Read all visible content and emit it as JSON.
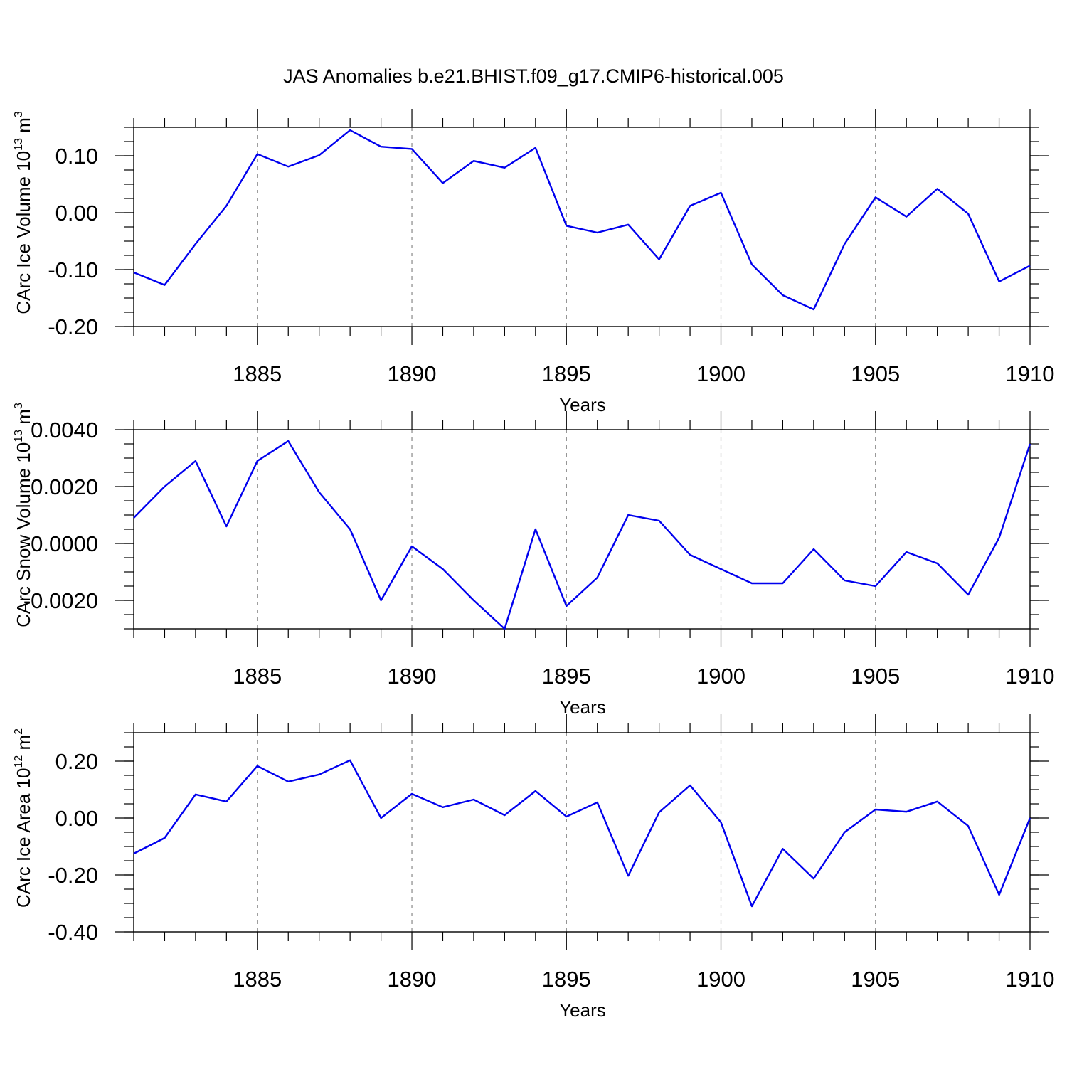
{
  "title": "JAS Anomalies b.e21.BHIST.f09_g17.CMIP6-historical.005",
  "colors": {
    "series": "#0000ee",
    "axis": "#000000",
    "grid": "#888888"
  },
  "chart_data": [
    {
      "type": "line",
      "ylabel": "CArc Ice Volume 10",
      "ylabel_exp": "13",
      "ylabel_unit": " m",
      "ylabel_unit_exp": "3",
      "xlabel": "Years",
      "xlim": [
        1881,
        1910
      ],
      "ylim": [
        -0.2,
        0.15
      ],
      "yticks": [
        -0.2,
        -0.1,
        0.0,
        0.1
      ],
      "ytick_labels": [
        "-0.20",
        "-0.10",
        "0.00",
        "0.10"
      ],
      "yminor": 0.025,
      "xticks": [
        1885,
        1890,
        1895,
        1900,
        1905,
        1910
      ],
      "xtick_labels": [
        "1885",
        "1890",
        "1895",
        "1900",
        "1905",
        "1910"
      ],
      "grid_x": [
        1885,
        1890,
        1895,
        1900,
        1905
      ],
      "x": [
        1881,
        1882,
        1883,
        1884,
        1885,
        1886,
        1887,
        1888,
        1889,
        1890,
        1891,
        1892,
        1893,
        1894,
        1895,
        1896,
        1897,
        1898,
        1899,
        1900,
        1901,
        1902,
        1903,
        1904,
        1905,
        1906,
        1907,
        1908,
        1909,
        1910
      ],
      "values": [
        -0.105,
        -0.127,
        -0.055,
        0.012,
        0.103,
        0.081,
        0.101,
        0.145,
        0.116,
        0.112,
        0.052,
        0.091,
        0.079,
        0.114,
        -0.023,
        -0.035,
        -0.021,
        -0.082,
        0.012,
        0.035,
        -0.091,
        -0.145,
        -0.17,
        -0.055,
        0.027,
        -0.007,
        0.042,
        -0.002,
        -0.121,
        -0.093
      ]
    },
    {
      "type": "line",
      "ylabel": "CArc Snow Volume 10",
      "ylabel_exp": "13",
      "ylabel_unit": " m",
      "ylabel_unit_exp": "3",
      "xlabel": "Years",
      "xlim": [
        1881,
        1910
      ],
      "ylim": [
        -0.003,
        0.004
      ],
      "yticks": [
        -0.002,
        0.0,
        0.002,
        0.004
      ],
      "ytick_labels": [
        "-0.0020",
        "0.0000",
        "0.0020",
        "0.0040"
      ],
      "yminor": 0.0005,
      "xticks": [
        1885,
        1890,
        1895,
        1900,
        1905,
        1910
      ],
      "xtick_labels": [
        "1885",
        "1890",
        "1895",
        "1900",
        "1905",
        "1910"
      ],
      "grid_x": [
        1885,
        1890,
        1895,
        1900,
        1905
      ],
      "x": [
        1881,
        1882,
        1883,
        1884,
        1885,
        1886,
        1887,
        1888,
        1889,
        1890,
        1891,
        1892,
        1893,
        1894,
        1895,
        1896,
        1897,
        1898,
        1899,
        1900,
        1901,
        1902,
        1903,
        1904,
        1905,
        1906,
        1907,
        1908,
        1909,
        1910
      ],
      "values": [
        0.0009,
        0.002,
        0.0029,
        0.0006,
        0.0029,
        0.0036,
        0.0018,
        0.0005,
        -0.002,
        -0.0001,
        -0.0009,
        -0.002,
        -0.003,
        0.0005,
        -0.0022,
        -0.0012,
        0.001,
        0.0008,
        -0.0004,
        -0.0009,
        -0.0014,
        -0.0014,
        -0.0002,
        -0.0013,
        -0.0015,
        -0.0003,
        -0.0007,
        -0.0018,
        0.0002,
        0.0035
      ]
    },
    {
      "type": "line",
      "ylabel": "CArc Ice Area 10",
      "ylabel_exp": "12",
      "ylabel_unit": " m",
      "ylabel_unit_exp": "2",
      "xlabel": "Years",
      "xlim": [
        1881,
        1910
      ],
      "ylim": [
        -0.4,
        0.3
      ],
      "yticks": [
        -0.4,
        -0.2,
        0.0,
        0.2
      ],
      "ytick_labels": [
        "-0.40",
        "-0.20",
        "0.00",
        "0.20"
      ],
      "yminor": 0.05,
      "xticks": [
        1885,
        1890,
        1895,
        1900,
        1905,
        1910
      ],
      "xtick_labels": [
        "1885",
        "1890",
        "1895",
        "1900",
        "1905",
        "1910"
      ],
      "grid_x": [
        1885,
        1890,
        1895,
        1900,
        1905
      ],
      "x": [
        1881,
        1882,
        1883,
        1884,
        1885,
        1886,
        1887,
        1888,
        1889,
        1890,
        1891,
        1892,
        1893,
        1894,
        1895,
        1896,
        1897,
        1898,
        1899,
        1900,
        1901,
        1902,
        1903,
        1904,
        1905,
        1906,
        1907,
        1908,
        1909,
        1910
      ],
      "values": [
        -0.125,
        -0.07,
        0.083,
        0.058,
        0.183,
        0.128,
        0.153,
        0.203,
        0.0,
        0.085,
        0.038,
        0.065,
        0.01,
        0.095,
        0.005,
        0.055,
        -0.203,
        0.02,
        0.115,
        -0.015,
        -0.31,
        -0.108,
        -0.213,
        -0.05,
        0.03,
        0.022,
        0.058,
        -0.028,
        -0.27,
        0.0
      ]
    }
  ]
}
